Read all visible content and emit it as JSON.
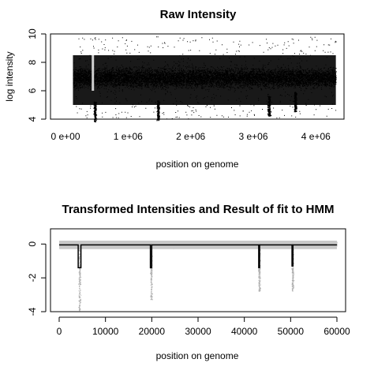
{
  "chart_data": [
    {
      "type": "scatter",
      "title": "Raw Intensity",
      "xlabel": "position on genome",
      "ylabel": "log intensity",
      "xlim": [
        0,
        4500000
      ],
      "ylim": [
        4,
        10
      ],
      "x_ticks": [
        0,
        1000000,
        2000000,
        3000000,
        4000000
      ],
      "x_tick_labels": [
        "0  e+00",
        "1  e+06",
        "2  e+06",
        "3  e+06",
        "4  e+06"
      ],
      "y_ticks": [
        4,
        6,
        8,
        10
      ],
      "y_tick_labels": [
        "4",
        "6",
        "8",
        "10"
      ],
      "color": "#000000",
      "bulk_band": [
        5,
        8.5
      ],
      "bulk_x_range": [
        220000,
        4420000
      ],
      "dips": [
        {
          "x": 570000,
          "min_y": 3.8
        },
        {
          "x": 1580000,
          "min_y": 3.9
        },
        {
          "x": 3350000,
          "min_y": 4.2
        },
        {
          "x": 3770000,
          "min_y": 4.5
        }
      ],
      "grid": false,
      "legend": "none"
    },
    {
      "type": "line",
      "title": "Transformed Intensities and  Result of fit to HMM",
      "xlabel": "position on genome",
      "ylabel": "",
      "xlim": [
        0,
        60000
      ],
      "ylim": [
        -4,
        0.9
      ],
      "x_ticks": [
        0,
        10000,
        20000,
        30000,
        40000,
        50000,
        60000
      ],
      "x_tick_labels": [
        "0",
        "10000",
        "20000",
        "30000",
        "40000",
        "50000",
        "60000"
      ],
      "y_ticks": [
        -4,
        -2,
        0
      ],
      "y_tick_labels": [
        "-4",
        "-2",
        "0"
      ],
      "points_color": "#c8c8c8",
      "fit_color": "#000000",
      "baseline": -0.05,
      "fit_segments": [
        {
          "x_start": 4100,
          "x_end": 4700,
          "level": -1.4
        },
        {
          "x_start": 19700,
          "x_end": 20000,
          "level": -1.4
        },
        {
          "x_start": 43100,
          "x_end": 43300,
          "level": -1.4
        },
        {
          "x_start": 50300,
          "x_end": 50500,
          "level": -1.3
        }
      ],
      "grid": false,
      "legend": "none"
    }
  ]
}
